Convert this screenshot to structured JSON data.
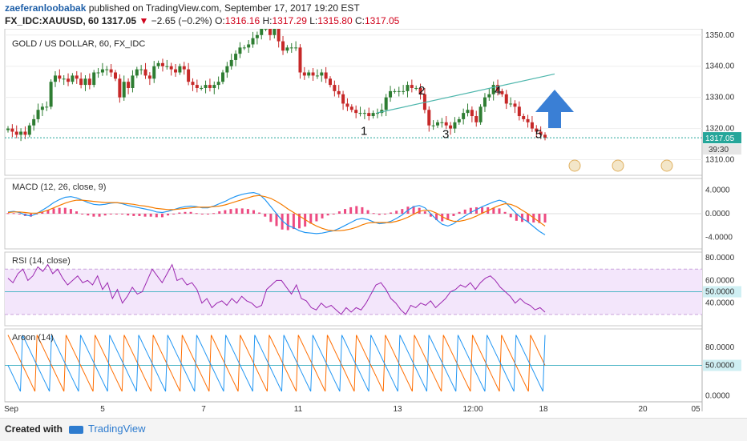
{
  "header": {
    "author": "zaeferanloobabak",
    "published": "published on TradingView.com, September 17, 2017 19:20 EST",
    "symbol": "FX_IDC:XAUUSD, 60",
    "last": "1317.05",
    "change_arrow": "▼",
    "change": "−2.65 (−0.2%)",
    "o_label": "O:",
    "o": "1316.16",
    "h_label": "H:",
    "h": "1317.29",
    "l_label": "L:",
    "l": "1315.80",
    "c_label": "C:",
    "c": "1317.05"
  },
  "footer": {
    "created_with": "Created with",
    "brand": "TradingView"
  },
  "colors": {
    "up": "#2e7d32",
    "down": "#c62828",
    "macd": "#2196f3",
    "signal": "#f57c00",
    "hist": "#e91e63",
    "rsi": "#9c27b0",
    "aroon_up": "#ff6d00",
    "aroon_down": "#2196f3",
    "trendline": "#4db6ac",
    "arrow": "#3a7fd5",
    "price_tag": "#26a69a"
  },
  "chart_data": [
    {
      "type": "candlestick",
      "title": "GOLD / US DOLLAR, 60, FX_IDC",
      "ylim": [
        1305,
        1352
      ],
      "yticks": [
        "1350.00",
        "1340.00",
        "1330.00",
        "1320.00",
        "1310.00"
      ],
      "price_label": "1317.05",
      "countdown": "39:30",
      "wave_labels": [
        "1",
        "2",
        "3",
        "4",
        "5"
      ],
      "x_labels": [
        "Sep",
        "5",
        "7",
        "11",
        "13",
        "12:00",
        "18",
        "20",
        "05"
      ],
      "closes": [
        1320,
        1319,
        1318,
        1319,
        1318,
        1321,
        1323,
        1326,
        1327,
        1327,
        1335,
        1337,
        1336,
        1336,
        1335,
        1337,
        1336,
        1334,
        1336,
        1334,
        1338,
        1338,
        1339,
        1339,
        1338,
        1336,
        1330,
        1335,
        1333,
        1337,
        1339,
        1339,
        1337,
        1336,
        1340,
        1341,
        1340,
        1340,
        1339,
        1338,
        1340,
        1339,
        1335,
        1334,
        1333,
        1333,
        1334,
        1333,
        1334,
        1335,
        1338,
        1340,
        1342,
        1344,
        1346,
        1346,
        1347,
        1349,
        1350,
        1352,
        1352,
        1350,
        1352,
        1348,
        1345,
        1346,
        1346,
        1346,
        1338,
        1337,
        1338,
        1337,
        1337,
        1338,
        1336,
        1334,
        1332,
        1331,
        1328,
        1327,
        1326,
        1325,
        1325,
        1325,
        1324,
        1325,
        1325,
        1326,
        1330,
        1332,
        1332,
        1332,
        1332,
        1334,
        1333,
        1333,
        1331,
        1326,
        1321,
        1321,
        1322,
        1322,
        1321,
        1320,
        1322,
        1323,
        1325,
        1326,
        1324,
        1322,
        1327,
        1330,
        1331,
        1334,
        1332,
        1331,
        1328,
        1328,
        1327,
        1324,
        1323,
        1322,
        1320,
        1319,
        1318,
        1317
      ],
      "opens_offset": "prev_close",
      "macd": {
        "label": "MACD (12, 26, close, 9)",
        "ylim": [
          -6,
          6
        ],
        "yticks": [
          "4.0000",
          "0.0000",
          "-4.0000"
        ],
        "macd": [
          0.3,
          0.4,
          0.2,
          -0.2,
          -0.4,
          0.0,
          0.6,
          1.2,
          1.9,
          2.4,
          2.8,
          2.9,
          2.7,
          2.3,
          1.9,
          1.6,
          1.5,
          1.6,
          1.8,
          1.9,
          1.7,
          1.4,
          1.2,
          1.0,
          0.8,
          0.6,
          0.3,
          0.2,
          0.4,
          0.7,
          1.0,
          1.2,
          1.3,
          1.2,
          1.0,
          1.0,
          1.3,
          1.7,
          2.1,
          2.6,
          3.0,
          3.3,
          3.5,
          3.6,
          3.3,
          2.4,
          1.2,
          0.0,
          -1.2,
          -2.0,
          -2.4,
          -2.9,
          -3.2,
          -3.3,
          -3.4,
          -3.3,
          -3.1,
          -2.9,
          -2.5,
          -2.0,
          -1.5,
          -1.0,
          -0.8,
          -1.0,
          -1.4,
          -1.7,
          -1.6,
          -1.3,
          -0.8,
          -0.2,
          0.6,
          1.2,
          1.4,
          1.0,
          0.0,
          -1.0,
          -1.8,
          -2.1,
          -1.7,
          -1.0,
          -0.4,
          0.2,
          0.7,
          1.2,
          1.6,
          2.0,
          2.3,
          2.0,
          1.0,
          0.0,
          -0.8,
          -1.4,
          -2.2,
          -3.0,
          -3.6
        ],
        "signal": [
          0.2,
          0.3,
          0.3,
          0.2,
          0.1,
          0.1,
          0.3,
          0.6,
          1.0,
          1.4,
          1.8,
          2.1,
          2.3,
          2.3,
          2.2,
          2.1,
          2.0,
          1.9,
          1.9,
          1.9,
          1.8,
          1.7,
          1.6,
          1.4,
          1.3,
          1.1,
          0.9,
          0.8,
          0.7,
          0.7,
          0.8,
          0.9,
          1.0,
          1.1,
          1.1,
          1.1,
          1.2,
          1.3,
          1.5,
          1.8,
          2.1,
          2.4,
          2.7,
          3.0,
          3.1,
          2.9,
          2.6,
          2.1,
          1.5,
          0.8,
          0.2,
          -0.4,
          -1.0,
          -1.6,
          -2.1,
          -2.5,
          -2.8,
          -2.9,
          -2.9,
          -2.8,
          -2.6,
          -2.3,
          -1.9,
          -1.6,
          -1.5,
          -1.5,
          -1.5,
          -1.5,
          -1.3,
          -1.0,
          -0.6,
          -0.1,
          0.4,
          0.6,
          0.5,
          0.1,
          -0.5,
          -1.0,
          -1.3,
          -1.3,
          -1.1,
          -0.8,
          -0.4,
          0.1,
          0.5,
          1.0,
          1.4,
          1.7,
          1.6,
          1.2,
          0.6,
          0.0,
          -0.7,
          -1.4,
          -2.1
        ]
      },
      "rsi": {
        "label": "RSI (14, close)",
        "ylim": [
          20,
          85
        ],
        "yticks": [
          "80.0000",
          "60.0000",
          "50.0000",
          "40.0000"
        ],
        "band": [
          30,
          70
        ],
        "values": [
          62,
          58,
          66,
          70,
          60,
          64,
          72,
          68,
          74,
          66,
          70,
          62,
          56,
          60,
          64,
          58,
          60,
          56,
          64,
          52,
          58,
          44,
          52,
          40,
          46,
          54,
          48,
          50,
          60,
          70,
          64,
          58,
          66,
          74,
          60,
          62,
          56,
          58,
          52,
          40,
          44,
          36,
          40,
          42,
          38,
          44,
          40,
          46,
          42,
          40,
          36,
          38,
          52,
          56,
          60,
          60,
          54,
          48,
          56,
          44,
          42,
          36,
          34,
          40,
          36,
          38,
          34,
          30,
          36,
          32,
          36,
          34,
          40,
          48,
          56,
          58,
          52,
          44,
          40,
          34,
          30,
          38,
          36,
          40,
          38,
          42,
          36,
          40,
          44,
          50,
          52,
          56,
          54,
          58,
          52,
          58,
          62,
          64,
          60,
          54,
          50,
          46,
          40,
          44,
          40,
          38,
          34,
          36,
          32
        ]
      },
      "aroon": {
        "label": "Aroon (14)",
        "ylim": [
          -10,
          110
        ],
        "yticks": [
          "80.0000",
          "50.0000",
          "0.0000"
        ],
        "up_period": 14,
        "down_period": 14
      }
    }
  ]
}
